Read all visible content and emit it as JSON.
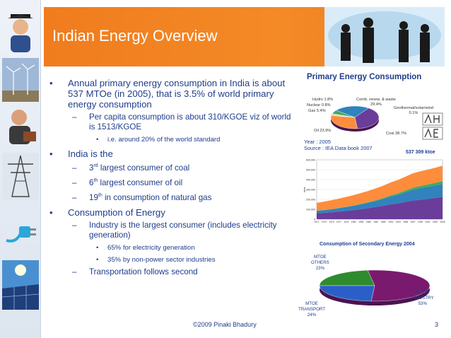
{
  "slide": {
    "title": "Indian Energy Overview",
    "footer": "©2009 Pinaki Bhadury",
    "page_number": "3"
  },
  "bullets": {
    "b1": "Annual primary energy consumption in India is about 537 MTOe (in 2005), that is 3.5% of world primary energy consumption",
    "b1_sub1": "Per capita consumption is about 310/KGOE viz of world is 1513/KGOE",
    "b1_sub1_sub1": "i.e. around 20% of the world standard",
    "b2": "India is the",
    "b2_sub1_num": "3",
    "b2_sub1_sup": "rd",
    "b2_sub1_rest": " largest consumer of coal",
    "b2_sub2_num": "6",
    "b2_sub2_sup": "th",
    "b2_sub2_rest": " largest consumer of oil",
    "b2_sub3_num": "19",
    "b2_sub3_sup": "th",
    "b2_sub3_rest": " in consumption of natural gas",
    "b3": "Consumption of Energy",
    "b3_sub1": "Industry is the largest consumer (includes electricity generation)",
    "b3_sub1_sub1": "65% for electricity generation",
    "b3_sub1_sub2": "35% by non-power sector industries",
    "b3_sub2": "Transportation follows second",
    "dash": "–"
  },
  "primary_panel": {
    "title": "Primary Energy Consumption",
    "year": "Year : 2005",
    "source": "Source : IEA Data book 2007",
    "total": "537 309  ktoe"
  },
  "secondary_panel": {
    "title": "Consumption of Secondary Energy 2004"
  },
  "chart_data": [
    {
      "type": "pie",
      "labels": [
        "Hydro 1.8%",
        "Nuclear 0.8%",
        "Gas 5.4%",
        "Oil 23.9%",
        "Coal 38.7%",
        "Comb. renew. & waste 29.4%",
        "Geothermal/solar/wind 0.1%"
      ],
      "categories": [
        "Hydro",
        "Nuclear",
        "Gas",
        "Oil",
        "Coal",
        "Comb. renew. & waste",
        "Geothermal/solar/wind"
      ],
      "values": [
        1.8,
        0.8,
        5.4,
        23.9,
        38.7,
        29.4,
        0.1
      ],
      "colors": [
        "#9ecae1",
        "#fdae6b",
        "#41ab5d",
        "#3182bd",
        "#6a3d9a",
        "#fd8d3c",
        "#cccccc"
      ]
    },
    {
      "type": "area",
      "ylabel": "ktoe",
      "x": [
        1971,
        1973,
        1975,
        1977,
        1979,
        1981,
        1983,
        1985,
        1987,
        1989,
        1991,
        1993,
        1995,
        1997,
        1999,
        2001,
        2003,
        2005
      ],
      "series": [
        {
          "values": [
            60000,
            64000,
            70000,
            77000,
            84000,
            92000,
            102000,
            112000,
            124000,
            136000,
            150000,
            160000,
            175000,
            188000,
            196000,
            205000,
            215000,
            225000
          ],
          "color": "#6a3d9a"
        },
        {
          "values": [
            25000,
            28000,
            31000,
            35000,
            40000,
            45000,
            50000,
            56000,
            62000,
            70000,
            80000,
            88000,
            98000,
            110000,
            118000,
            122000,
            126000,
            130000
          ],
          "color": "#3182bd"
        },
        {
          "values": [
            600,
            800,
            1000,
            1200,
            1500,
            2000,
            3000,
            4000,
            6000,
            8000,
            11000,
            14000,
            17000,
            20000,
            22000,
            24000,
            26000,
            29000
          ],
          "color": "#41ab5d"
        },
        {
          "values": [
            80000,
            85000,
            90000,
            95000,
            100000,
            105000,
            110000,
            115000,
            120000,
            125000,
            130000,
            135000,
            140000,
            145000,
            148000,
            150000,
            153000,
            156000
          ],
          "color": "#fd8d3c"
        }
      ],
      "ylim": [
        0,
        600000
      ],
      "yticks": [
        "0",
        "100,000",
        "200,000",
        "300,000",
        "400,000",
        "500,000",
        "600,000"
      ]
    },
    {
      "type": "pie",
      "labels": [
        "MTOE\nOTHERS\n23%",
        "MTOE\nINDUSTRY\n53%",
        "MTOE\nTRANSPORT\n24%"
      ],
      "categories": [
        "OTHERS",
        "INDUSTRY",
        "TRANSPORT"
      ],
      "values": [
        23,
        53,
        24
      ],
      "colors": [
        "#2e8b2e",
        "#7a1a6e",
        "#2b5fc8"
      ]
    }
  ]
}
